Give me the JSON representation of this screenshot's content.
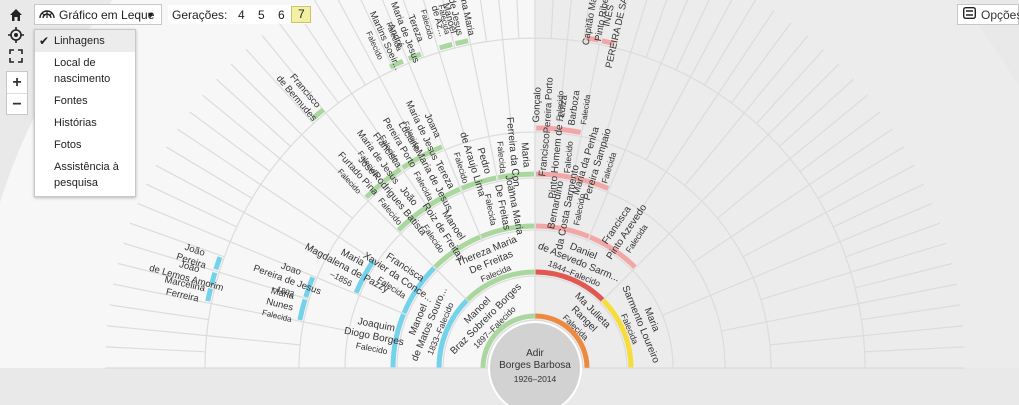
{
  "toolbar": {
    "chart_type": "Gráfico em Leque",
    "generations_label": "Gerações:",
    "generations": [
      "4",
      "5",
      "6",
      "7"
    ],
    "selected_generation": "7",
    "options_label": "Opções"
  },
  "menu": {
    "items": [
      "Linhagens",
      "Local de nascimento",
      "Fontes",
      "Histórias",
      "Fotos",
      "Assistência à pesquisa"
    ],
    "selected": "Linhagens"
  },
  "colors": {
    "paternal_bg": "#f7f7f7",
    "maternal_bg": "#ececec",
    "green": "#a9d79e",
    "cyan": "#74d2ea",
    "pink": "#f3a6a6",
    "yellow": "#f7dd3c",
    "red": "#e0584f",
    "orange": "#ee8a3f"
  },
  "center": {
    "name": "Adir\nBorges Barbosa",
    "dates": "1926–2014"
  },
  "fan": [
    {
      "ring": 1,
      "a0": 180,
      "a1": 270,
      "name": "Manoel\nBraz Sobreiro Borges",
      "dates": "1897–Falecido",
      "band": "green"
    },
    {
      "ring": 1,
      "a0": 270,
      "a1": 360,
      "name": "Ma Julieta\nRangel",
      "dates": "Falecida",
      "band": "orange"
    },
    {
      "ring": 2,
      "a0": 180,
      "a1": 225,
      "name": "Manoel\nde Matos Souro...",
      "dates": "1833–Falecido",
      "band": "cyan"
    },
    {
      "ring": 2,
      "a0": 225,
      "a1": 270,
      "name": "Thereza Maria\nDe Freitas",
      "dates": "Falecida",
      "band": "green"
    },
    {
      "ring": 2,
      "a0": 270,
      "a1": 315,
      "name": "Daniel\nde Asevedo Sarm...",
      "dates": "1844–Falecido",
      "band": "red"
    },
    {
      "ring": 2,
      "a0": 315,
      "a1": 360,
      "name": "Maria\nSarmento Loureiro",
      "dates": "Falecida",
      "band": "yellow"
    },
    {
      "ring": 3,
      "a0": 180,
      "a1": 202.5,
      "name": "Joaquim\nDiogo Borges",
      "dates": "Falecido",
      "band": "cyan"
    },
    {
      "ring": 3,
      "a0": 202.5,
      "a1": 225,
      "name": "Francisca\nXavier da Conce...",
      "dates": "Falecida",
      "band": "cyan"
    },
    {
      "ring": 3,
      "a0": 225,
      "a1": 247.5,
      "name": "Manoel\nRoiz de Freitas",
      "dates": "Falecido",
      "band": "green"
    },
    {
      "ring": 3,
      "a0": 247.5,
      "a1": 270,
      "name": "Joanna Maria\nDe Freitas",
      "dates": "Falecida",
      "band": "green"
    },
    {
      "ring": 3,
      "a0": 270,
      "a1": 292.5,
      "name": "Bernardino\nda Costa Sarmento",
      "dates": "Falecido",
      "band": "pink"
    },
    {
      "ring": 3,
      "a0": 292.5,
      "a1": 315,
      "name": "Francisca\nPinto Azevedo",
      "dates": "Falecida",
      "band": "pink"
    },
    {
      "ring": 4,
      "a0": 202.5,
      "a1": 213.75,
      "name": "Maria\nMagdalena de Pazzy",
      "dates": "–1856",
      "band": "cyan"
    },
    {
      "ring": 4,
      "a0": 225,
      "a1": 236.25,
      "name": "João\nRodrigues Batista",
      "dates": "Falecido",
      "band": "green"
    },
    {
      "ring": 4,
      "a0": 236.25,
      "a1": 247.5,
      "name": "Tereza\nMaria de Jesus",
      "dates": "Falecida",
      "band": "green"
    },
    {
      "ring": 4,
      "a0": 247.5,
      "a1": 258.75,
      "name": "Pedro\nde Araujo Lima",
      "dates": "Falecido",
      "band": "green"
    },
    {
      "ring": 4,
      "a0": 258.75,
      "a1": 270,
      "name": "Maria\nFerreira da Con...",
      "dates": "Falecida",
      "band": "green"
    },
    {
      "ring": 4,
      "a0": 270,
      "a1": 281.25,
      "name": "Francisco\nPinto Homem de ...",
      "dates": "Falecido",
      "band": "pink"
    },
    {
      "ring": 4,
      "a0": 281.25,
      "a1": 292.5,
      "name": "Maria da Penha\nPereira Sampaio",
      "dates": "Falecida",
      "band": "pink"
    },
    {
      "ring": 5,
      "a0": 191.25,
      "a1": 196.875,
      "name": "Maria\nNunes",
      "dates": "Falecida",
      "band": "cyan"
    },
    {
      "ring": 5,
      "a0": 196.875,
      "a1": 202.5,
      "name": "Joao\nPereira de Jesus",
      "dates": "–1802",
      "band": "cyan"
    },
    {
      "ring": 5,
      "a0": 225,
      "a1": 230.625,
      "name": "Jose\nFurtado Pina",
      "dates": "Falecido",
      "band": "green"
    },
    {
      "ring": 5,
      "a0": 230.625,
      "a1": 236.25,
      "name": "Francisca\nMaria de Jesus",
      "dates": "Falecida",
      "band": "green"
    },
    {
      "ring": 5,
      "a0": 236.25,
      "a1": 241.875,
      "name": "Luciano\nPereira Porto",
      "dates": "Falecido",
      "band": "green"
    },
    {
      "ring": 5,
      "a0": 241.875,
      "a1": 247.5,
      "name": "Joana\nMaria de Jesus",
      "dates": "Falecida",
      "band": "green"
    },
    {
      "ring": 5,
      "a0": 270,
      "a1": 275.625,
      "name": "Gonçalo\nPereira Porto",
      "dates": "Falecido",
      "band": "pink"
    },
    {
      "ring": 5,
      "a0": 275.625,
      "a1": 281.25,
      "name": "Luiza\nBarboza",
      "dates": "Falecida",
      "band": "pink"
    },
    {
      "ring": 6,
      "a0": 191.25,
      "a1": 194.0625,
      "name": "Marcelina\nFerreira",
      "dates": "",
      "band": "cyan"
    },
    {
      "ring": 6,
      "a0": 194.0625,
      "a1": 196.875,
      "name": "João\nde Lemos Amorim",
      "dates": "",
      "band": "cyan"
    },
    {
      "ring": 6,
      "a0": 196.875,
      "a1": 199.6875,
      "name": "João\nPereira",
      "dates": "",
      "band": "cyan"
    },
    {
      "ring": 6,
      "a0": 228,
      "a1": 231,
      "name": "Francisco\nde Bermudes",
      "dates": "",
      "band": "green"
    },
    {
      "ring": 6,
      "a0": 244,
      "a1": 247,
      "name": "André\nMartins Soeir...",
      "dates": "Falecido",
      "band": "green"
    },
    {
      "ring": 6,
      "a0": 247.5,
      "a1": 250.3125,
      "name": "Tereza\nMaria de Jesus",
      "dates": "Falecida",
      "band": "green"
    },
    {
      "ring": 6,
      "a0": 253.125,
      "a1": 255.9375,
      "name": "Manoel\nde Az...",
      "dates": "Falecido",
      "band": "green"
    },
    {
      "ring": 6,
      "a0": 255.9375,
      "a1": 258.75,
      "name": "Ana Maria\nde Jesus",
      "dates": "Falecida",
      "band": "green"
    },
    {
      "ring": 6,
      "a0": 278.4375,
      "a1": 281.25,
      "name": "Capitão Manuel\nPinto Ribeiro",
      "dates": "",
      "band": "pink"
    },
    {
      "ring": 6,
      "a0": 281.25,
      "a1": 284.0625,
      "name": "INÊS\nPEREIRA DE SAMPAIO",
      "dates": "",
      "band": "pink"
    }
  ]
}
